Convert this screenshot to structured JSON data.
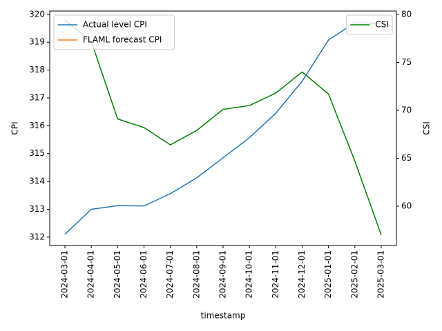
{
  "chart_data": {
    "type": "line",
    "categories": [
      "2024-03-01",
      "2024-04-01",
      "2024-05-01",
      "2024-06-01",
      "2024-07-01",
      "2024-08-01",
      "2024-09-01",
      "2024-10-01",
      "2024-11-01",
      "2024-12-01",
      "2025-01-01",
      "2025-02-01",
      "2025-03-01"
    ],
    "x_label": "timestamp",
    "y_label": "CPI",
    "y2_label": "CSI",
    "series": [
      {
        "name": "Actual level CPI",
        "color": "#1f77b4",
        "values": [
          312.1,
          313.0,
          313.13,
          313.12,
          313.56,
          314.13,
          314.85,
          315.57,
          316.45,
          317.6,
          319.08,
          319.7,
          319.68
        ]
      },
      {
        "name": "FLAML forecast CPI",
        "color": "#ff7f0e",
        "values": [
          null,
          null,
          null,
          null,
          null,
          null,
          null,
          null,
          null,
          null,
          null,
          null,
          null
        ]
      },
      {
        "name": "CSI",
        "color": "#008000",
        "axis": "y2",
        "values": [
          79.4,
          77.2,
          69.1,
          68.2,
          66.4,
          67.9,
          70.1,
          70.5,
          71.8,
          74.0,
          71.7,
          64.7,
          57.0
        ]
      }
    ],
    "ylim": [
      311.7,
      320.12
    ],
    "yticks": [
      312,
      313,
      314,
      315,
      316,
      317,
      318,
      319,
      320
    ],
    "y2lim": [
      55.9,
      80.36
    ],
    "y2ticks": [
      60,
      65,
      70,
      75,
      80
    ],
    "legend_loc": "upper left",
    "y2_legend_loc": "upper right"
  }
}
